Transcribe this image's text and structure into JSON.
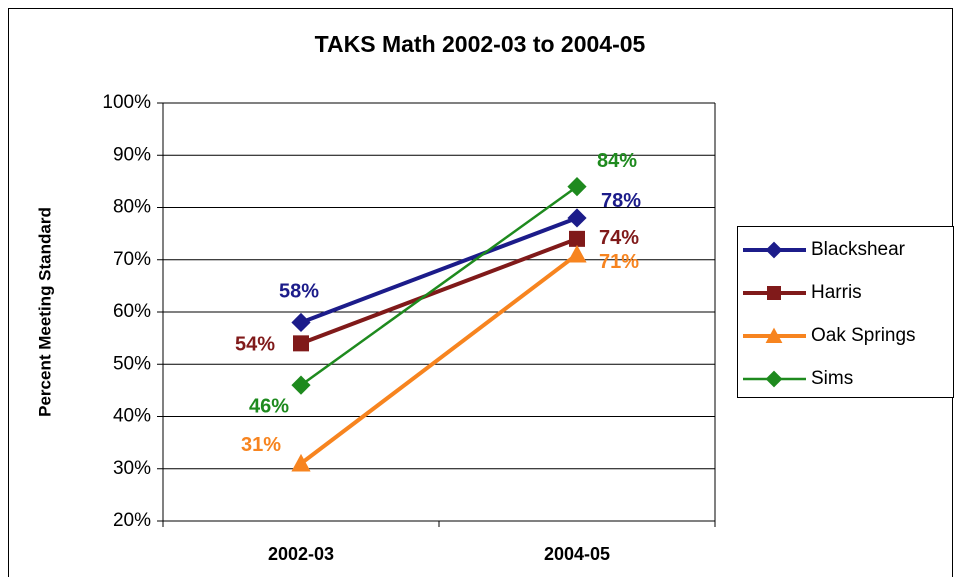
{
  "chart_data": {
    "type": "line",
    "title": "TAKS Math 2002-03 to 2004-05",
    "y_label": "Percent Meeting Standard",
    "categories": [
      "2002-03",
      "2004-05"
    ],
    "ylim": [
      20,
      100
    ],
    "yticks": [
      {
        "value": 20,
        "label": "20%"
      },
      {
        "value": 30,
        "label": "30%"
      },
      {
        "value": 40,
        "label": "40%"
      },
      {
        "value": 50,
        "label": "50%"
      },
      {
        "value": 60,
        "label": "60%"
      },
      {
        "value": 70,
        "label": "70%"
      },
      {
        "value": 80,
        "label": "80%"
      },
      {
        "value": 90,
        "label": "90%"
      },
      {
        "value": 100,
        "label": "100%"
      }
    ],
    "grid": true,
    "legend": "right",
    "series": [
      {
        "name": "Blackshear",
        "color": "#1c1c8a",
        "marker": "diamond",
        "values": [
          58,
          78
        ],
        "value_labels": [
          "58%",
          "78%"
        ]
      },
      {
        "name": "Harris",
        "color": "#801a1a",
        "marker": "square",
        "values": [
          54,
          74
        ],
        "value_labels": [
          "54%",
          "74%"
        ]
      },
      {
        "name": "Oak Springs",
        "color": "#f7841f",
        "marker": "triangle",
        "values": [
          31,
          71
        ],
        "value_labels": [
          "31%",
          "71%"
        ]
      },
      {
        "name": "Sims",
        "color": "#1e8a1e",
        "marker": "diamond",
        "values": [
          46,
          84
        ],
        "value_labels": [
          "46%",
          "84%"
        ]
      }
    ]
  }
}
